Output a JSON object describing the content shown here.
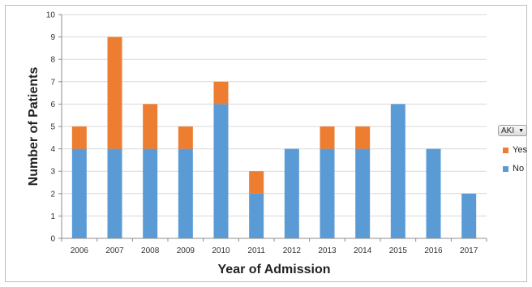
{
  "chart_data": {
    "type": "bar",
    "stacked": true,
    "title": "",
    "xlabel": "Year of Admission",
    "ylabel": "Number of Patients",
    "categories": [
      "2006",
      "2007",
      "2008",
      "2009",
      "2010",
      "2011",
      "2012",
      "2013",
      "2014",
      "2015",
      "2016",
      "2017"
    ],
    "series": [
      {
        "name": "No",
        "color": "#5b9bd5",
        "values": [
          4,
          4,
          4,
          4,
          6,
          2,
          4,
          4,
          4,
          6,
          4,
          2
        ]
      },
      {
        "name": "Yes",
        "color": "#ed7d31",
        "values": [
          1,
          5,
          2,
          1,
          1,
          1,
          0,
          1,
          1,
          0,
          0,
          0
        ]
      }
    ],
    "ylim": [
      0,
      10
    ],
    "yticks": [
      0,
      1,
      2,
      3,
      4,
      5,
      6,
      7,
      8,
      9,
      10
    ],
    "grid": true,
    "legend_position": "right",
    "legend_filter_label": "AKI",
    "legend_order": [
      "Yes",
      "No"
    ]
  }
}
